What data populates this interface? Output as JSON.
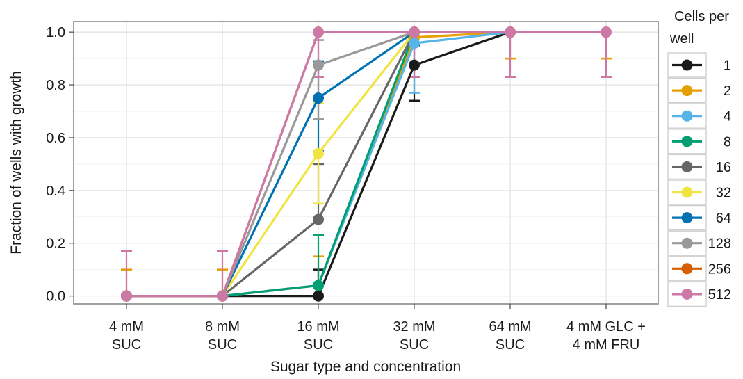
{
  "chart_data": {
    "type": "line",
    "title": "",
    "xlabel": "Sugar type and concentration",
    "ylabel": "Fraction of wells with growth",
    "ylim": [
      -0.03,
      1.04
    ],
    "yticks": [
      "0.0",
      "0.2",
      "0.4",
      "0.6",
      "0.8",
      "1.0"
    ],
    "grid": true,
    "categories": [
      [
        "4 mM",
        "SUC"
      ],
      [
        "8 mM",
        "SUC"
      ],
      [
        "16 mM",
        "SUC"
      ],
      [
        "32 mM",
        "SUC"
      ],
      [
        "64 mM",
        "SUC"
      ],
      [
        "4 mM GLC +",
        "4 mM FRU"
      ]
    ],
    "legend": {
      "title_lines": [
        "Cells per",
        "well"
      ],
      "placement": "right"
    },
    "series": [
      {
        "name": "1",
        "color": "#1a1a1a",
        "values": [
          0,
          0,
          0,
          0.875,
          1,
          null
        ],
        "err_hi": [
          null,
          null,
          0.1,
          0.95,
          null,
          null
        ],
        "err_lo": [
          null,
          null,
          null,
          0.74,
          null,
          null
        ]
      },
      {
        "name": "2",
        "color": "#e69f00",
        "values": [
          0,
          0,
          0.04,
          0.98,
          1,
          null
        ],
        "err_hi": [
          0.1,
          0.1,
          0.15,
          null,
          0.9,
          0.9
        ],
        "err_lo": [
          null,
          null,
          null,
          null,
          null,
          null
        ]
      },
      {
        "name": "4",
        "color": "#56b4e9",
        "values": [
          0,
          0,
          0.04,
          0.958,
          1,
          null
        ],
        "err_hi": [
          null,
          null,
          null,
          null,
          null,
          null
        ],
        "err_lo": [
          null,
          null,
          null,
          0.77,
          null,
          null
        ]
      },
      {
        "name": "8",
        "color": "#009e73",
        "values": [
          0,
          0,
          0.04,
          1,
          1,
          null
        ],
        "err_hi": [
          null,
          null,
          0.23,
          null,
          null,
          null
        ],
        "err_lo": [
          null,
          null,
          null,
          null,
          null,
          null
        ]
      },
      {
        "name": "16",
        "color": "#666666",
        "values": [
          0,
          0,
          0.29,
          1,
          1,
          null
        ],
        "err_hi": [
          null,
          null,
          0.5,
          null,
          null,
          null
        ],
        "err_lo": [
          null,
          null,
          null,
          null,
          null,
          null
        ]
      },
      {
        "name": "32",
        "color": "#f0e442",
        "values": [
          0,
          0,
          0.54,
          1,
          1,
          null
        ],
        "err_hi": [
          null,
          null,
          0.73,
          null,
          null,
          null
        ],
        "err_lo": [
          null,
          null,
          0.35,
          null,
          null,
          null
        ]
      },
      {
        "name": "64",
        "color": "#0072b2",
        "values": [
          0,
          0,
          0.75,
          1,
          1,
          null
        ],
        "err_hi": [
          null,
          null,
          0.89,
          null,
          null,
          null
        ],
        "err_lo": [
          null,
          null,
          0.55,
          null,
          null,
          null
        ]
      },
      {
        "name": "128",
        "color": "#999999",
        "values": [
          0,
          0,
          0.875,
          1,
          1,
          null
        ],
        "err_hi": [
          null,
          null,
          0.97,
          null,
          null,
          null
        ],
        "err_lo": [
          null,
          null,
          0.67,
          null,
          null,
          null
        ]
      },
      {
        "name": "256",
        "color": "#d55e00",
        "values": [
          0,
          0,
          1,
          1,
          1,
          1
        ],
        "err_hi": [
          null,
          null,
          null,
          null,
          null,
          null
        ],
        "err_lo": [
          null,
          null,
          null,
          null,
          null,
          null
        ]
      },
      {
        "name": "512",
        "color": "#cc79a7",
        "values": [
          0,
          0,
          1,
          1,
          1,
          1
        ],
        "err_hi": [
          0.17,
          0.17,
          null,
          null,
          null,
          null
        ],
        "err_lo": [
          null,
          null,
          0.83,
          0.83,
          0.83,
          0.83
        ]
      }
    ]
  }
}
